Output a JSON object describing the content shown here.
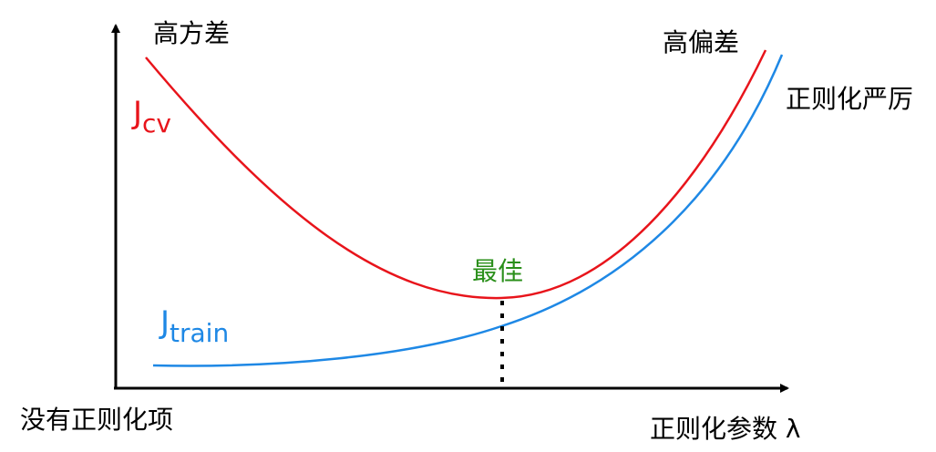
{
  "labels": {
    "high_variance": "高方差",
    "high_bias": "高偏差",
    "strong_regularization": "正则化严厉",
    "best": "最佳",
    "no_regularization": "没有正则化项",
    "x_axis": "正则化参数 λ"
  },
  "curves": {
    "cv": {
      "main": "J",
      "sub": "cv"
    },
    "train": {
      "main": "J",
      "sub": "train"
    }
  }
}
